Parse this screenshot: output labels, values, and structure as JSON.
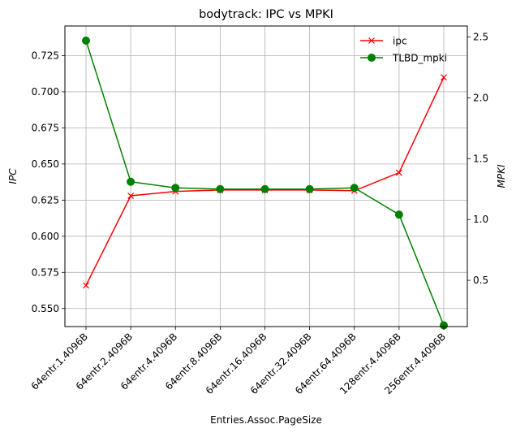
{
  "chart_data": {
    "type": "line",
    "title": "bodytrack: IPC vs MPKI",
    "xlabel": "Entries.Assoc.PageSize",
    "ylabel_left": "IPC",
    "ylabel_right": "MPKI",
    "categories": [
      "64entr.1.4096B",
      "64entr.2.4096B",
      "64entr.4.4096B",
      "64entr.8.4096B",
      "64entr.16.4096B",
      "64entr.32.4096B",
      "64entr.64.4096B",
      "128entr.4.4096B",
      "256entr.4.4096B"
    ],
    "y_left_range": [
      0.5375,
      0.7455
    ],
    "y_left_ticks": [
      0.55,
      0.575,
      0.6,
      0.625,
      0.65,
      0.675,
      0.7,
      0.725
    ],
    "y_left_tick_labels": [
      "0.550",
      "0.575",
      "0.600",
      "0.625",
      "0.650",
      "0.675",
      "0.700",
      "0.725"
    ],
    "y_right_range": [
      0.12,
      2.59
    ],
    "y_right_ticks": [
      0.5,
      1.0,
      1.5,
      2.0,
      2.5
    ],
    "y_right_tick_labels": [
      "0.5",
      "1.0",
      "1.5",
      "2.0",
      "2.5"
    ],
    "grid": true,
    "legend_position": "top-right",
    "series": [
      {
        "name": "ipc",
        "axis": "left",
        "color": "#ff0000",
        "marker": "x",
        "values": [
          0.566,
          0.628,
          0.631,
          0.632,
          0.632,
          0.632,
          0.6315,
          0.644,
          0.71
        ]
      },
      {
        "name": "TLBD_mpki",
        "axis": "right",
        "color": "#008000",
        "marker": "o",
        "values": [
          2.47,
          1.31,
          1.26,
          1.25,
          1.25,
          1.25,
          1.26,
          1.04,
          0.13
        ]
      }
    ]
  }
}
